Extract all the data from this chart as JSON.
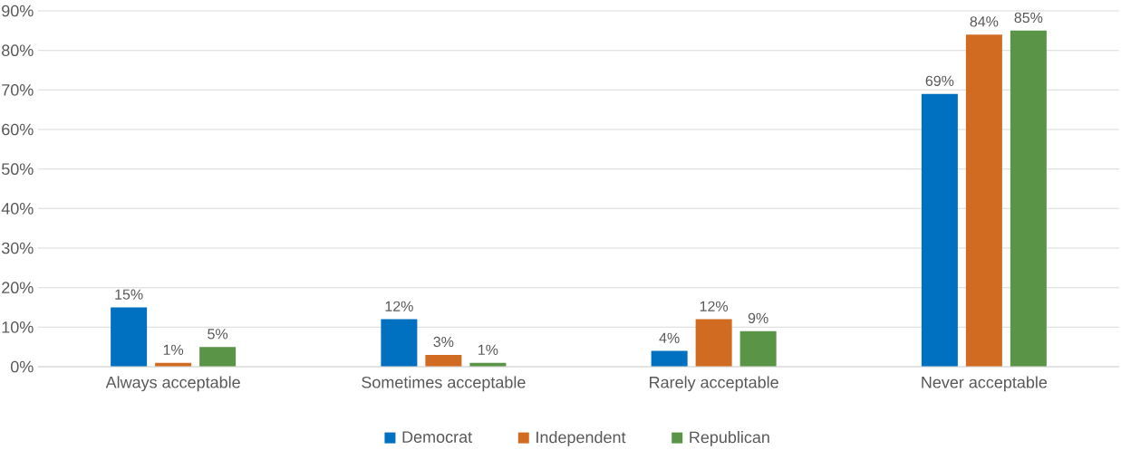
{
  "chart_data": {
    "type": "bar",
    "categories": [
      "Always acceptable",
      "Sometimes acceptable",
      "Rarely acceptable",
      "Never acceptable"
    ],
    "series": [
      {
        "name": "Democrat",
        "color": "#0070c0",
        "values": [
          15,
          12,
          4,
          69
        ],
        "value_labels": [
          "15%",
          "12%",
          "4%",
          "69%"
        ]
      },
      {
        "name": "Independent",
        "color": "#d06b21",
        "values": [
          1,
          3,
          12,
          84
        ],
        "value_labels": [
          "1%",
          "3%",
          "12%",
          "84%"
        ]
      },
      {
        "name": "Republican",
        "color": "#5a9447",
        "values": [
          5,
          1,
          9,
          85
        ],
        "value_labels": [
          "5%",
          "1%",
          "9%",
          "85%"
        ]
      }
    ],
    "ylim": [
      0,
      90
    ],
    "yticks": [
      {
        "value": 0,
        "label": "0%"
      },
      {
        "value": 10,
        "label": "10%"
      },
      {
        "value": 20,
        "label": "20%"
      },
      {
        "value": 30,
        "label": "30%"
      },
      {
        "value": 40,
        "label": "40%"
      },
      {
        "value": 50,
        "label": "50%"
      },
      {
        "value": 60,
        "label": "60%"
      },
      {
        "value": 70,
        "label": "70%"
      },
      {
        "value": 80,
        "label": "80%"
      },
      {
        "value": 90,
        "label": "90%"
      }
    ],
    "grid": "y",
    "legend": "bottom"
  }
}
